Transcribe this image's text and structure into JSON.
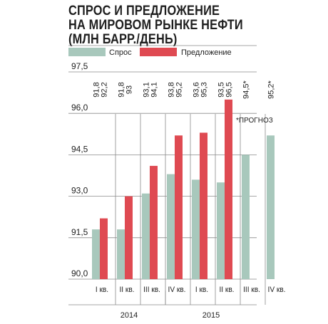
{
  "title": "СПРОС И ПРЕДЛОЖЕНИЕ\nНА МИРОВОМ РЫНКЕ НЕФТИ\n(МЛН БАРР./ДЕНЬ)",
  "colors": {
    "demand": "#a8c8bc",
    "supply": "#df4a52",
    "grid": "#8a8a8a"
  },
  "chart_data": {
    "type": "bar",
    "title": "СПРОС И ПРЕДЛОЖЕНИЕ НА МИРОВОМ РЫНКЕ НЕФТИ (МЛН БАРР./ДЕНЬ)",
    "categories": [
      "I кв.",
      "II кв.",
      "III кв.",
      "IV кв.",
      "I кв.",
      "II кв.",
      "III кв.",
      "IV кв."
    ],
    "years": [
      {
        "label": "2014"
      },
      {
        "label": "2015"
      }
    ],
    "yticks": [
      "90,0",
      "91,5",
      "93,0",
      "94,5",
      "96,0",
      "97,5"
    ],
    "ylim": [
      90,
      97.5
    ],
    "legend_position": "top",
    "note": "*ПРОГНОЗ",
    "series": [
      {
        "name": "Спрос",
        "values": [
          91.8,
          91.8,
          93.1,
          93.8,
          93.6,
          93.5,
          94.5,
          95.2
        ],
        "labels": [
          "91,8",
          "91,8",
          "93,1",
          "93,8",
          "93,6",
          "93,5",
          "94,5*",
          "95,2*"
        ]
      },
      {
        "name": "Предложение",
        "values": [
          92.2,
          93.0,
          94.1,
          95.2,
          95.3,
          96.5,
          null,
          null
        ],
        "labels": [
          "92,2",
          "93",
          "94,1",
          "95,2",
          "95,3",
          "96,5",
          "",
          ""
        ]
      }
    ]
  }
}
